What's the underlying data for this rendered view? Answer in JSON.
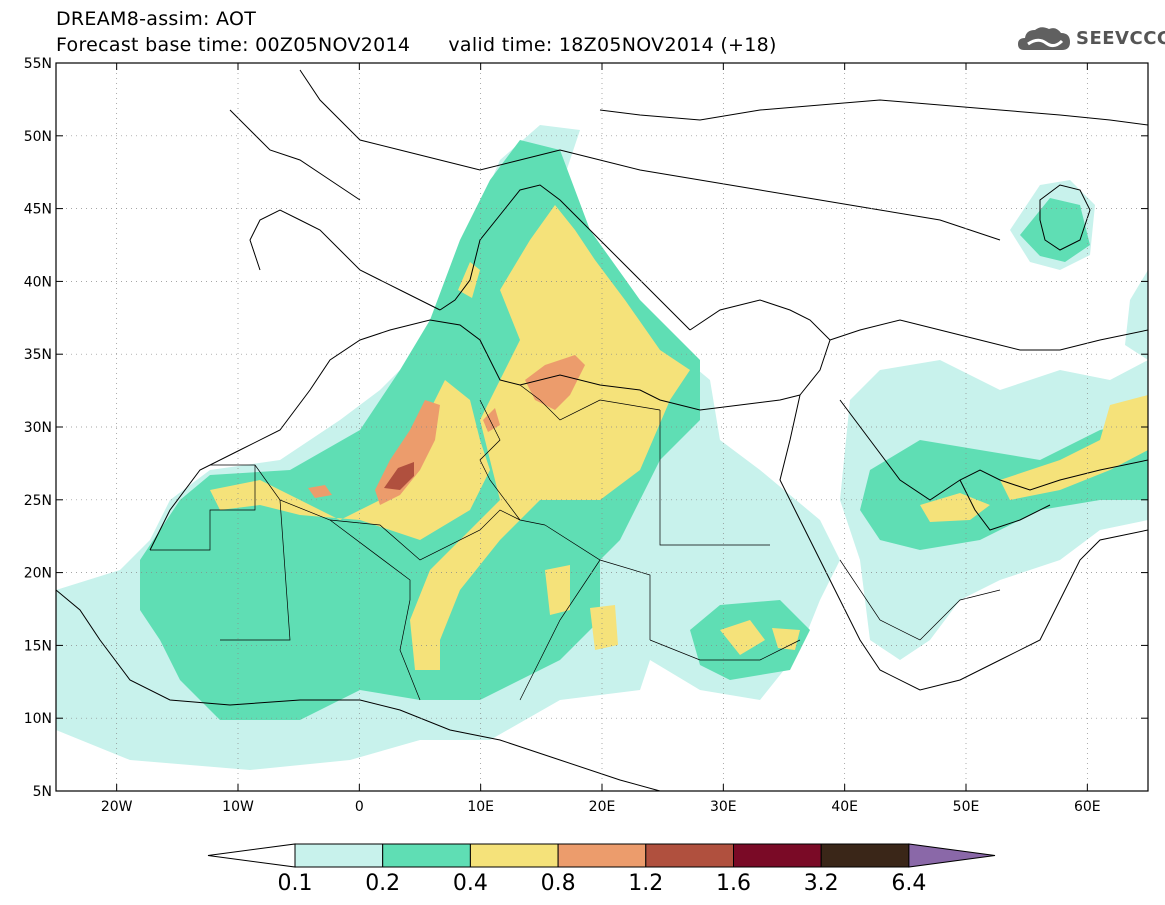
{
  "title": {
    "line1": "DREAM8-assim: AOT",
    "line2_base": "Forecast base time: 00Z05NOV2014",
    "line2_valid": "valid time: 18Z05NOV2014 (+18)"
  },
  "logo": {
    "text": "SEEVCCC",
    "icon": "cloud-icon"
  },
  "map": {
    "lon_range": [
      -25,
      65
    ],
    "lat_range": [
      5,
      55
    ],
    "lon_ticks": [
      {
        "lon": -20,
        "label": "20W"
      },
      {
        "lon": -10,
        "label": "10W"
      },
      {
        "lon": 0,
        "label": "0"
      },
      {
        "lon": 10,
        "label": "10E"
      },
      {
        "lon": 20,
        "label": "20E"
      },
      {
        "lon": 30,
        "label": "30E"
      },
      {
        "lon": 40,
        "label": "40E"
      },
      {
        "lon": 50,
        "label": "50E"
      },
      {
        "lon": 60,
        "label": "60E"
      }
    ],
    "lat_ticks": [
      {
        "lat": 5,
        "label": "5N"
      },
      {
        "lat": 10,
        "label": "10N"
      },
      {
        "lat": 15,
        "label": "15N"
      },
      {
        "lat": 20,
        "label": "20N"
      },
      {
        "lat": 25,
        "label": "25N"
      },
      {
        "lat": 30,
        "label": "30N"
      },
      {
        "lat": 35,
        "label": "35N"
      },
      {
        "lat": 40,
        "label": "40N"
      },
      {
        "lat": 45,
        "label": "45N"
      },
      {
        "lat": 50,
        "label": "50N"
      },
      {
        "lat": 55,
        "label": "55N"
      }
    ],
    "grid": true
  },
  "legend": {
    "colors": [
      "#ffffff",
      "#c8f2ec",
      "#5fdeb4",
      "#f5e27a",
      "#ec9c6c",
      "#b0503e",
      "#7a0a26",
      "#3a2618",
      "#8a68a8"
    ],
    "labels": [
      "0.1",
      "0.2",
      "0.4",
      "0.8",
      "1.2",
      "1.6",
      "3.2",
      "6.4"
    ]
  }
}
